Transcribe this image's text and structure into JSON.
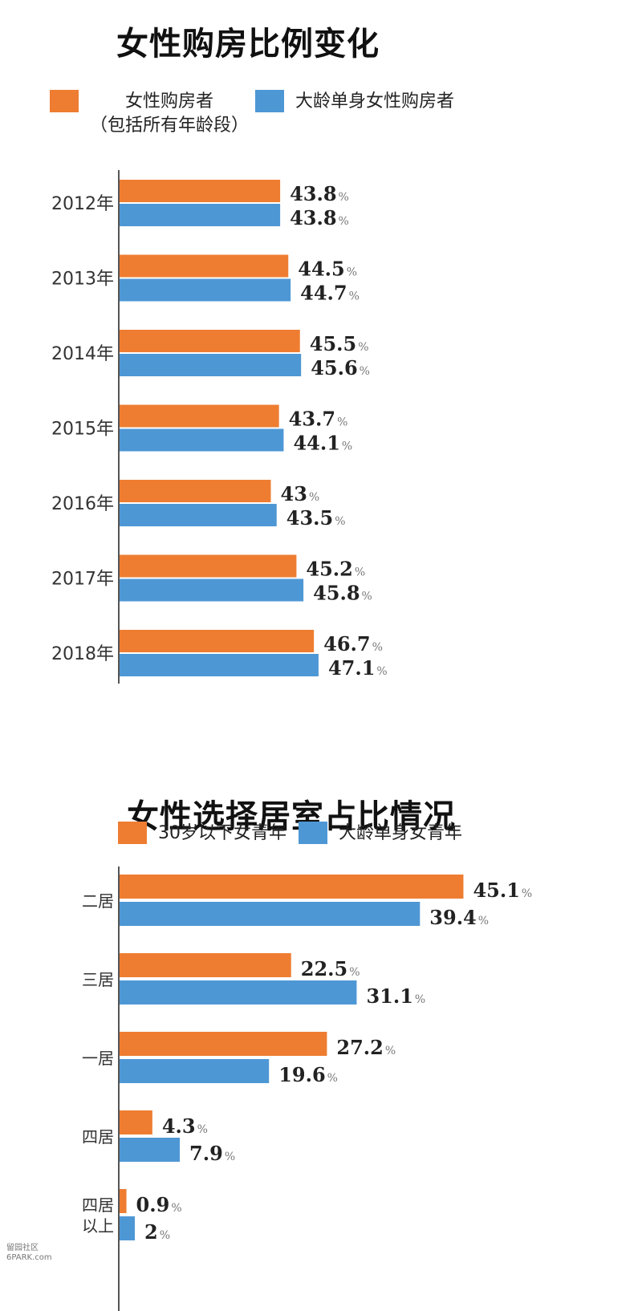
{
  "colors": {
    "orange": "#ee7d31",
    "blue": "#4e97d5",
    "axis": "#555555"
  },
  "watermark": {
    "line1": "留园社区",
    "line2": "6PARK.com"
  },
  "chart_data": [
    {
      "type": "bar",
      "orientation": "horizontal",
      "title": "女性购房比例变化",
      "categories": [
        "2012年",
        "2013年",
        "2014年",
        "2015年",
        "2016年",
        "2017年",
        "2018年"
      ],
      "series": [
        {
          "name": "女性购房者",
          "name_sub": "（包括所有年龄段）",
          "color": "#ee7d31",
          "values": [
            43.8,
            44.5,
            45.5,
            43.7,
            43,
            45.2,
            46.7
          ],
          "labels": [
            "43.8",
            "44.5",
            "45.5",
            "43.7",
            "43",
            "45.2",
            "46.7"
          ]
        },
        {
          "name": "大龄单身女性购房者",
          "color": "#4e97d5",
          "values": [
            43.8,
            44.7,
            45.6,
            44.1,
            43.5,
            45.8,
            47.1
          ],
          "labels": [
            "43.8",
            "44.7",
            "45.6",
            "44.1",
            "43.5",
            "45.8",
            "47.1"
          ]
        }
      ],
      "unit": "%",
      "legend": "top",
      "grid": false
    },
    {
      "type": "bar",
      "orientation": "horizontal",
      "title": "女性选择居室占比情况",
      "categories": [
        "二居",
        "三居",
        "一居",
        "四居",
        "四居以上"
      ],
      "category_lines": [
        [
          "二居"
        ],
        [
          "三居"
        ],
        [
          "一居"
        ],
        [
          "四居"
        ],
        [
          "四居",
          "以上"
        ]
      ],
      "series": [
        {
          "name": "30岁以下女青年",
          "color": "#ee7d31",
          "values": [
            45.1,
            22.5,
            27.2,
            4.3,
            0.9
          ],
          "labels": [
            "45.1",
            "22.5",
            "27.2",
            "4.3",
            "0.9"
          ]
        },
        {
          "name": "大龄单身女青年",
          "color": "#4e97d5",
          "values": [
            39.4,
            31.1,
            19.6,
            7.9,
            2
          ],
          "labels": [
            "39.4",
            "31.1",
            "19.6",
            "7.9",
            "2"
          ]
        }
      ],
      "unit": "%",
      "legend": "top",
      "grid": false
    }
  ]
}
